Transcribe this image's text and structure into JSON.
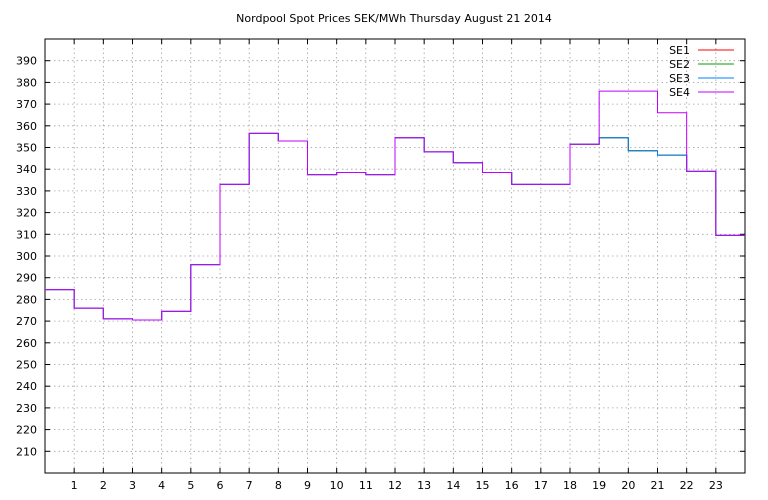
{
  "chart_data": {
    "type": "line",
    "title": "Nordpool Spot Prices SEK/MWh Thursday August 21 2014",
    "xlabel": "",
    "ylabel": "",
    "step": true,
    "grid": true,
    "legend_position": "top-right",
    "x": [
      0,
      1,
      2,
      3,
      4,
      5,
      6,
      7,
      8,
      9,
      10,
      11,
      12,
      13,
      14,
      15,
      16,
      17,
      18,
      19,
      20,
      21,
      22,
      23
    ],
    "xticks": [
      1,
      2,
      3,
      4,
      5,
      6,
      7,
      8,
      9,
      10,
      11,
      12,
      13,
      14,
      15,
      16,
      17,
      18,
      19,
      20,
      21,
      22,
      23
    ],
    "xlim": [
      0,
      24
    ],
    "ylim": [
      200,
      400
    ],
    "yticks": [
      210,
      220,
      230,
      240,
      250,
      260,
      270,
      280,
      290,
      300,
      310,
      320,
      330,
      340,
      350,
      360,
      370,
      380,
      390
    ],
    "series": [
      {
        "name": "SE1",
        "color": "#ff0000",
        "values": [
          284.5,
          276.0,
          271.0,
          270.5,
          274.5,
          296.0,
          333.0,
          356.5,
          353.0,
          337.5,
          338.5,
          337.5,
          354.5,
          348.0,
          343.0,
          338.5,
          333.0,
          333.0,
          351.5,
          354.5,
          348.5,
          346.5,
          339.0,
          309.5
        ]
      },
      {
        "name": "SE2",
        "color": "#00a000",
        "values": [
          284.5,
          276.0,
          271.0,
          270.5,
          274.5,
          296.0,
          333.0,
          356.5,
          353.0,
          337.5,
          338.5,
          337.5,
          354.5,
          348.0,
          343.0,
          338.5,
          333.0,
          333.0,
          351.5,
          354.5,
          348.5,
          346.5,
          339.0,
          309.5
        ]
      },
      {
        "name": "SE3",
        "color": "#0080ff",
        "values": [
          284.5,
          276.0,
          271.0,
          270.5,
          274.5,
          296.0,
          333.0,
          356.5,
          353.0,
          337.5,
          338.5,
          337.5,
          354.5,
          348.0,
          343.0,
          338.5,
          333.0,
          333.0,
          351.5,
          354.5,
          348.5,
          346.5,
          339.0,
          309.5
        ]
      },
      {
        "name": "SE4",
        "color": "#c000ff",
        "values": [
          284.5,
          276.0,
          271.0,
          270.5,
          274.5,
          296.0,
          333.0,
          356.5,
          353.0,
          337.5,
          338.5,
          337.5,
          354.5,
          348.0,
          343.0,
          338.5,
          333.0,
          333.0,
          351.5,
          376.0,
          376.0,
          366.0,
          339.0,
          309.5
        ]
      }
    ]
  }
}
